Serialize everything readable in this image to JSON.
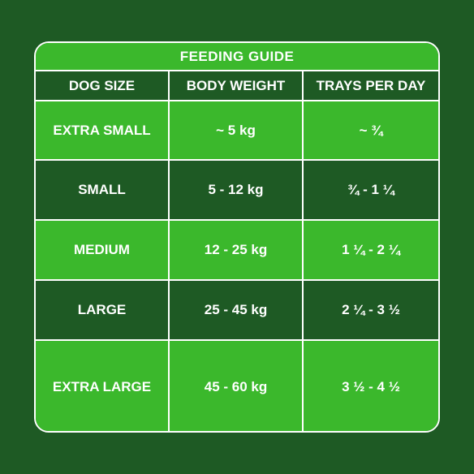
{
  "title": "FEEDING GUIDE",
  "headers": [
    "DOG SIZE",
    "BODY WEIGHT",
    "TRAYS PER DAY"
  ],
  "rows": [
    {
      "size": "EXTRA SMALL",
      "weight": "~ 5 kg",
      "trays": "~ ¾"
    },
    {
      "size": "SMALL",
      "weight": "5 - 12 kg",
      "trays": "¾ - 1 ¼"
    },
    {
      "size": "MEDIUM",
      "weight": "12 - 25 kg",
      "trays": "1 ¼ - 2 ¼"
    },
    {
      "size": "LARGE",
      "weight": "25 - 45 kg",
      "trays": "2 ¼ - 3 ½"
    },
    {
      "size": "EXTRA LARGE",
      "weight": "45 - 60 kg",
      "trays": "3 ½ - 4 ½"
    }
  ],
  "colors": {
    "background": "#1e5a24",
    "light_row": "#3bb82c",
    "dark_row": "#1e5a24",
    "border": "#ffffff",
    "text": "#ffffff"
  }
}
